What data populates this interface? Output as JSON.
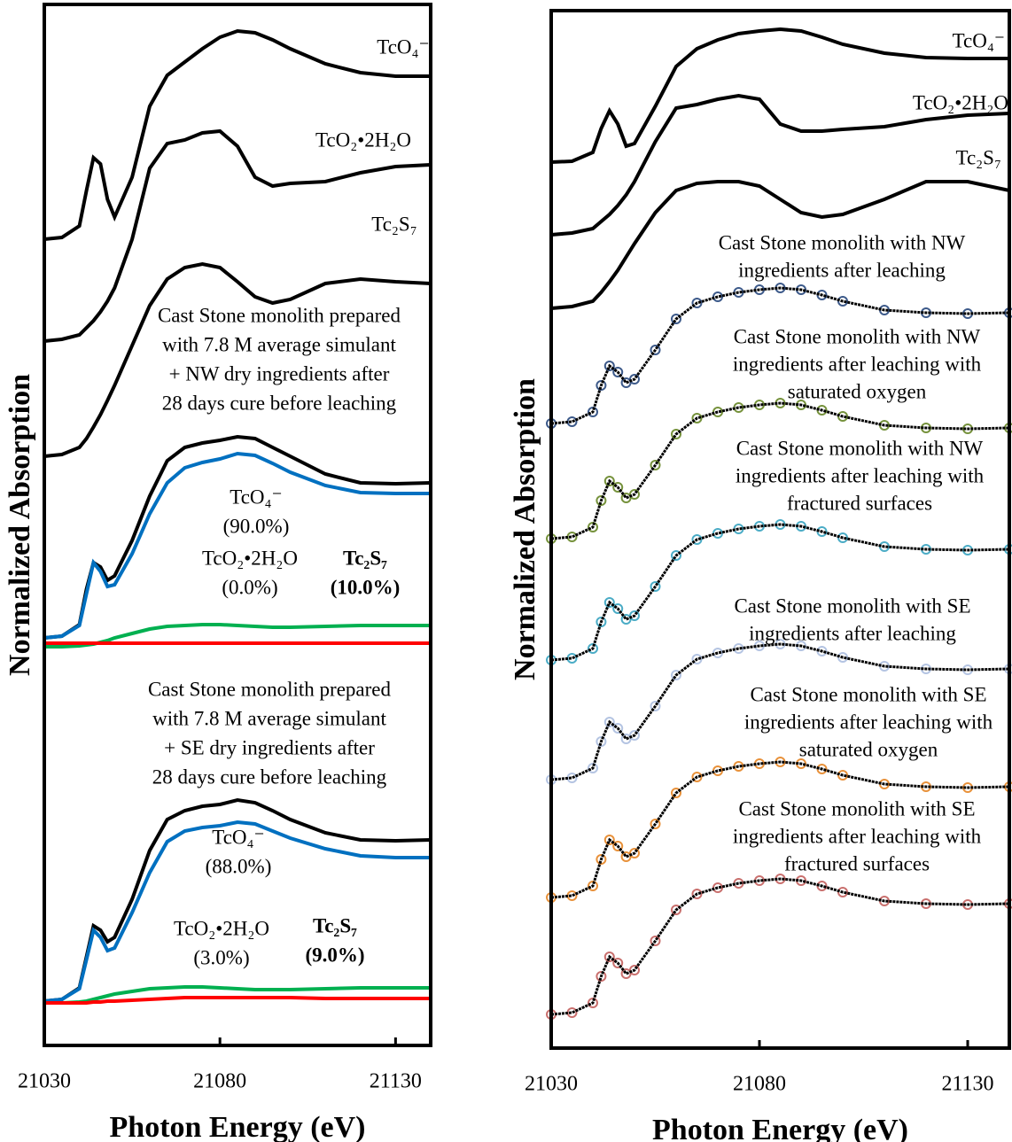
{
  "chart_data": [
    {
      "type": "line",
      "xlabel": "Photon Energy (eV)",
      "ylabel": "Normalized Absorption",
      "xlim": [
        21030,
        21140
      ],
      "xticks": [
        21030,
        21080,
        21130
      ],
      "ylim": [
        0,
        11.75
      ],
      "x": [
        21030,
        21035,
        21040,
        21042,
        21044,
        21046,
        21048,
        21050,
        21055,
        21060,
        21065,
        21070,
        21075,
        21080,
        21085,
        21090,
        21095,
        21100,
        21110,
        21120,
        21130,
        21140
      ],
      "series": [
        {
          "label": [
            "TcO₄⁻"
          ],
          "color": "#000000",
          "values": [
            9.1,
            9.12,
            9.25,
            9.65,
            10.02,
            9.95,
            9.55,
            9.35,
            9.8,
            10.6,
            10.95,
            11.1,
            11.25,
            11.38,
            11.45,
            11.43,
            11.35,
            11.25,
            11.08,
            10.98,
            10.94,
            10.94
          ]
        },
        {
          "label": [
            "TcO₂•2H₂O"
          ],
          "color": "#000000",
          "values": [
            7.95,
            7.97,
            8.02,
            8.1,
            8.18,
            8.28,
            8.4,
            8.55,
            9.1,
            9.9,
            10.18,
            10.22,
            10.3,
            10.32,
            10.15,
            9.8,
            9.7,
            9.73,
            9.75,
            9.85,
            9.92,
            9.94
          ]
        },
        {
          "label": [
            "Tc₂S₇"
          ],
          "color": "#000000",
          "values": [
            6.65,
            6.67,
            6.75,
            6.85,
            6.98,
            7.12,
            7.28,
            7.45,
            7.9,
            8.35,
            8.65,
            8.78,
            8.82,
            8.78,
            8.62,
            8.45,
            8.38,
            8.42,
            8.6,
            8.65,
            8.62,
            8.6
          ]
        },
        {
          "label": [
            "Cast Stone monolith prepared",
            "with 7.8 M average simulant",
            "+ NW dry ingredients after",
            "28 days cure before leaching"
          ],
          "color": "#000000",
          "values": [
            4.6,
            4.62,
            4.75,
            5.15,
            5.45,
            5.4,
            5.25,
            5.3,
            5.7,
            6.2,
            6.6,
            6.75,
            6.8,
            6.83,
            6.87,
            6.85,
            6.75,
            6.65,
            6.45,
            6.35,
            6.34,
            6.35
          ]
        },
        {
          "label": [
            "TcO₄⁻",
            "(90.0%)"
          ],
          "label_color": "#2020c8",
          "color": "#0070c0",
          "values": [
            4.6,
            4.62,
            4.74,
            5.1,
            5.45,
            5.35,
            5.18,
            5.2,
            5.55,
            6.0,
            6.35,
            6.52,
            6.58,
            6.62,
            6.68,
            6.66,
            6.57,
            6.47,
            6.32,
            6.24,
            6.23,
            6.23
          ]
        },
        {
          "label": [
            "Tc₂S₇",
            "(10.0%)"
          ],
          "label_color": "#1a7a1a",
          "bold": true,
          "color": "#00b050",
          "values": [
            4.5,
            4.5,
            4.51,
            4.52,
            4.53,
            4.55,
            4.57,
            4.6,
            4.65,
            4.7,
            4.73,
            4.74,
            4.75,
            4.75,
            4.74,
            4.73,
            4.72,
            4.72,
            4.73,
            4.74,
            4.74,
            4.74
          ]
        },
        {
          "label": [
            "TcO₂•2H₂O",
            "(0.0%)"
          ],
          "label_color": "#ff2020",
          "color": "#ff0000",
          "values": [
            4.54,
            4.54,
            4.54,
            4.54,
            4.54,
            4.54,
            4.54,
            4.54,
            4.54,
            4.54,
            4.54,
            4.54,
            4.54,
            4.54,
            4.54,
            4.54,
            4.54,
            4.54,
            4.54,
            4.54,
            4.54,
            4.54
          ]
        },
        {
          "label": [
            "Cast Stone monolith prepared",
            "with 7.8 M average simulant",
            "+ SE dry ingredients after",
            "28 days cure before leaching"
          ],
          "color": "#000000",
          "values": [
            0.5,
            0.52,
            0.65,
            1.0,
            1.35,
            1.3,
            1.17,
            1.22,
            1.65,
            2.2,
            2.55,
            2.65,
            2.7,
            2.72,
            2.77,
            2.74,
            2.65,
            2.55,
            2.4,
            2.32,
            2.31,
            2.32
          ]
        },
        {
          "label": [
            "TcO₄⁻",
            "(88.0%)"
          ],
          "label_color": "#2020c8",
          "color": "#0070c0",
          "values": [
            0.5,
            0.52,
            0.64,
            0.97,
            1.3,
            1.22,
            1.07,
            1.1,
            1.5,
            1.95,
            2.3,
            2.42,
            2.46,
            2.48,
            2.52,
            2.5,
            2.42,
            2.34,
            2.22,
            2.14,
            2.12,
            2.12
          ]
        },
        {
          "label": [
            "Tc₂S₇",
            "(9.0%)"
          ],
          "label_color": "#1a7a1a",
          "bold": true,
          "color": "#00b050",
          "values": [
            0.48,
            0.48,
            0.49,
            0.5,
            0.52,
            0.54,
            0.56,
            0.58,
            0.61,
            0.64,
            0.65,
            0.66,
            0.66,
            0.65,
            0.64,
            0.63,
            0.63,
            0.63,
            0.64,
            0.65,
            0.65,
            0.65
          ]
        },
        {
          "label": [
            "TcO₂•2H₂O",
            "(3.0%)"
          ],
          "label_color": "#ff2020",
          "color": "#ff0000",
          "values": [
            0.48,
            0.48,
            0.48,
            0.48,
            0.49,
            0.49,
            0.5,
            0.5,
            0.51,
            0.52,
            0.53,
            0.54,
            0.54,
            0.54,
            0.54,
            0.54,
            0.54,
            0.54,
            0.53,
            0.53,
            0.53,
            0.53
          ]
        }
      ]
    },
    {
      "type": "line",
      "xlabel": "Photon Energy (eV)",
      "ylabel": "Normalized Absorption",
      "xlim": [
        21030,
        21140
      ],
      "xticks": [
        21030,
        21080,
        21130
      ],
      "ylim": [
        0,
        11.71
      ],
      "x": [
        21030,
        21035,
        21040,
        21042,
        21044,
        21046,
        21048,
        21050,
        21055,
        21060,
        21065,
        21070,
        21075,
        21080,
        21085,
        21090,
        21095,
        21100,
        21110,
        21120,
        21130,
        21140
      ],
      "series": [
        {
          "label": [
            "TcO₄⁻"
          ],
          "color": "#000000",
          "values": [
            10.0,
            10.01,
            10.11,
            10.38,
            10.58,
            10.43,
            10.18,
            10.21,
            10.63,
            11.08,
            11.28,
            11.38,
            11.45,
            11.48,
            11.5,
            11.48,
            11.41,
            11.33,
            11.23,
            11.18,
            11.17,
            11.17
          ]
        },
        {
          "label": [
            "TcO₂•2H₂O"
          ],
          "color": "#000000",
          "values": [
            9.18,
            9.2,
            9.25,
            9.33,
            9.41,
            9.51,
            9.63,
            9.78,
            10.23,
            10.61,
            10.65,
            10.71,
            10.75,
            10.71,
            10.43,
            10.35,
            10.35,
            10.37,
            10.4,
            10.48,
            10.53,
            10.55
          ]
        },
        {
          "label": [
            "Tc₂S₇"
          ],
          "color": "#000000",
          "values": [
            8.35,
            8.37,
            8.43,
            8.53,
            8.65,
            8.78,
            8.93,
            9.08,
            9.43,
            9.68,
            9.76,
            9.78,
            9.78,
            9.73,
            9.58,
            9.43,
            9.38,
            9.41,
            9.58,
            9.78,
            9.78,
            9.68
          ]
        },
        {
          "label": [
            "Cast Stone monolith with NW",
            "ingredients after leaching"
          ],
          "color": "#3d5a8a",
          "marker": "circle",
          "line_color": "#000000",
          "values": [
            7.05,
            7.07,
            7.18,
            7.48,
            7.7,
            7.63,
            7.51,
            7.55,
            7.88,
            8.23,
            8.41,
            8.48,
            8.53,
            8.56,
            8.58,
            8.56,
            8.5,
            8.43,
            8.33,
            8.3,
            8.29,
            8.3
          ]
        },
        {
          "label": [
            "Cast Stone monolith with NW",
            "ingredients after leaching with",
            "saturated oxygen"
          ],
          "color": "#76923c",
          "marker": "circle",
          "line_color": "#000000",
          "values": [
            5.75,
            5.77,
            5.88,
            6.18,
            6.4,
            6.33,
            6.21,
            6.25,
            6.58,
            6.93,
            7.11,
            7.18,
            7.23,
            7.26,
            7.28,
            7.26,
            7.2,
            7.13,
            7.03,
            7.0,
            6.99,
            7.0
          ]
        },
        {
          "label": [
            "Cast Stone monolith with NW",
            "ingredients after leaching with",
            "fractured surfaces"
          ],
          "color": "#4bacc6",
          "marker": "circle",
          "line_color": "#000000",
          "values": [
            4.38,
            4.4,
            4.51,
            4.81,
            5.03,
            4.96,
            4.84,
            4.88,
            5.21,
            5.56,
            5.74,
            5.81,
            5.86,
            5.89,
            5.91,
            5.89,
            5.83,
            5.76,
            5.66,
            5.63,
            5.62,
            5.63
          ]
        },
        {
          "label": [
            "Cast Stone monolith with SE",
            "ingredients after leaching"
          ],
          "color": "#b4c4e2",
          "marker": "circle",
          "line_color": "#000000",
          "values": [
            3.03,
            3.05,
            3.16,
            3.46,
            3.68,
            3.61,
            3.49,
            3.53,
            3.86,
            4.21,
            4.39,
            4.46,
            4.51,
            4.54,
            4.56,
            4.54,
            4.48,
            4.41,
            4.31,
            4.28,
            4.27,
            4.28
          ]
        },
        {
          "label": [
            "Cast Stone monolith with SE",
            "ingredients after leaching with",
            "saturated oxygen"
          ],
          "color": "#e8913a",
          "marker": "circle",
          "line_color": "#000000",
          "values": [
            1.7,
            1.72,
            1.83,
            2.13,
            2.35,
            2.28,
            2.16,
            2.2,
            2.53,
            2.88,
            3.06,
            3.13,
            3.18,
            3.21,
            3.23,
            3.21,
            3.15,
            3.08,
            2.98,
            2.95,
            2.94,
            2.95
          ]
        },
        {
          "label": [
            "Cast Stone monolith with SE",
            "ingredients after leaching with",
            "fractured surfaces"
          ],
          "color": "#c9706e",
          "marker": "circle",
          "line_color": "#000000",
          "values": [
            0.38,
            0.4,
            0.51,
            0.81,
            1.03,
            0.96,
            0.84,
            0.88,
            1.21,
            1.56,
            1.74,
            1.81,
            1.86,
            1.89,
            1.91,
            1.89,
            1.83,
            1.76,
            1.66,
            1.63,
            1.62,
            1.63
          ]
        }
      ]
    }
  ]
}
